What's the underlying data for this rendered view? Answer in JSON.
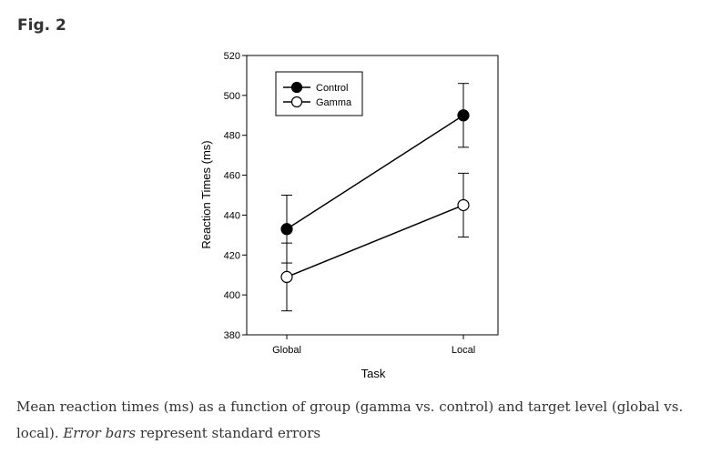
{
  "figure_label": "Fig. 2",
  "caption": {
    "part1": "Mean reaction times (ms) as a function of group (gamma vs. control) and target level (global vs. local). ",
    "emphasis": "Error bars",
    "part2": " represent standard errors"
  },
  "chart_data": {
    "type": "line",
    "categories": [
      "Global",
      "Local"
    ],
    "xlabel": "Task",
    "ylabel": "Reaction Times (ms)",
    "ylim": [
      380,
      520
    ],
    "yticks": [
      380,
      400,
      420,
      440,
      460,
      480,
      500,
      520
    ],
    "grid": false,
    "legend": "top-left",
    "series": [
      {
        "name": "Control",
        "marker": "filled",
        "values": [
          433,
          490
        ],
        "error": [
          17,
          16
        ]
      },
      {
        "name": "Gamma",
        "marker": "open",
        "values": [
          409,
          445
        ],
        "error": [
          17,
          16
        ]
      }
    ]
  }
}
